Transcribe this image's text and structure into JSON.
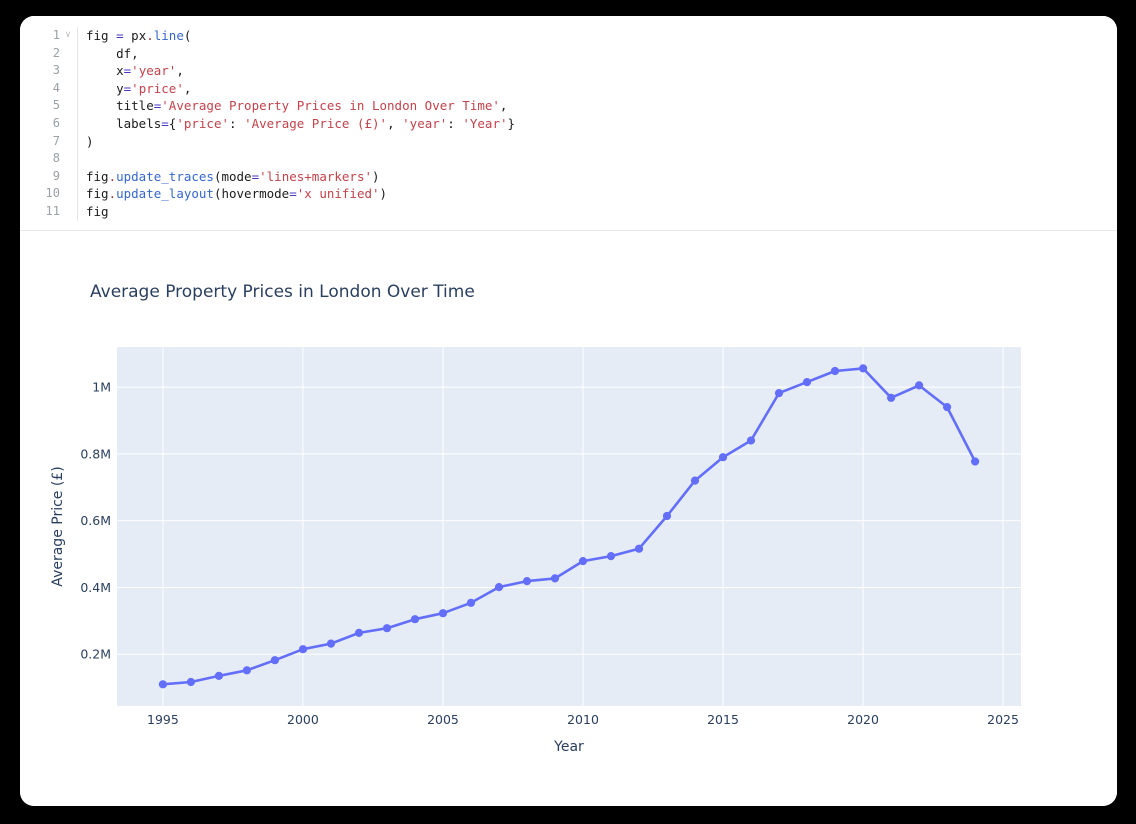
{
  "window": {
    "background_color": "#000000",
    "card_color": "#ffffff"
  },
  "code_editor": {
    "fold_icon": "∨",
    "lines": [
      {
        "num": "1",
        "fold": true,
        "tokens": [
          [
            "fig ",
            ""
          ],
          [
            "=",
            "op"
          ],
          [
            " px",
            ""
          ],
          [
            ".",
            "dot"
          ],
          [
            "line",
            "fn"
          ],
          [
            "(",
            ""
          ]
        ]
      },
      {
        "num": "2",
        "fold": false,
        "tokens": [
          [
            "    df,",
            ""
          ]
        ]
      },
      {
        "num": "3",
        "fold": false,
        "tokens": [
          [
            "    x",
            ""
          ],
          [
            "=",
            "op"
          ],
          [
            "'year'",
            "str"
          ],
          [
            ",",
            ""
          ]
        ]
      },
      {
        "num": "4",
        "fold": false,
        "tokens": [
          [
            "    y",
            ""
          ],
          [
            "=",
            "op"
          ],
          [
            "'price'",
            "str"
          ],
          [
            ",",
            ""
          ]
        ]
      },
      {
        "num": "5",
        "fold": false,
        "tokens": [
          [
            "    title",
            ""
          ],
          [
            "=",
            "op"
          ],
          [
            "'Average Property Prices in London Over Time'",
            "str"
          ],
          [
            ",",
            ""
          ]
        ]
      },
      {
        "num": "6",
        "fold": false,
        "tokens": [
          [
            "    labels",
            ""
          ],
          [
            "=",
            "op"
          ],
          [
            "{",
            ""
          ],
          [
            "'price'",
            "str"
          ],
          [
            ": ",
            ""
          ],
          [
            "'Average Price (£)'",
            "str"
          ],
          [
            ", ",
            ""
          ],
          [
            "'year'",
            "str"
          ],
          [
            ": ",
            ""
          ],
          [
            "'Year'",
            "str"
          ],
          [
            "}",
            ""
          ]
        ]
      },
      {
        "num": "7",
        "fold": false,
        "tokens": [
          [
            ")",
            ""
          ]
        ]
      },
      {
        "num": "8",
        "fold": false,
        "tokens": [
          [
            "",
            ""
          ]
        ]
      },
      {
        "num": "9",
        "fold": false,
        "tokens": [
          [
            "fig",
            ""
          ],
          [
            ".",
            "dot"
          ],
          [
            "update_traces",
            "fn"
          ],
          [
            "(mode",
            ""
          ],
          [
            "=",
            "op"
          ],
          [
            "'lines+markers'",
            "str"
          ],
          [
            ")",
            ""
          ]
        ]
      },
      {
        "num": "10",
        "fold": false,
        "tokens": [
          [
            "fig",
            ""
          ],
          [
            ".",
            "dot"
          ],
          [
            "update_layout",
            "fn"
          ],
          [
            "(hovermode",
            ""
          ],
          [
            "=",
            "op"
          ],
          [
            "'x unified'",
            "str"
          ],
          [
            ")",
            ""
          ]
        ]
      },
      {
        "num": "11",
        "fold": false,
        "tokens": [
          [
            "fig",
            ""
          ]
        ]
      }
    ]
  },
  "chart_data": {
    "type": "line",
    "title": "Average Property Prices in London Over Time",
    "xlabel": "Year",
    "ylabel": "Average Price (£)",
    "mode": "lines+markers",
    "x": [
      1995,
      1996,
      1997,
      1998,
      1999,
      2000,
      2001,
      2002,
      2003,
      2004,
      2005,
      2006,
      2007,
      2008,
      2009,
      2010,
      2011,
      2012,
      2013,
      2014,
      2015,
      2016,
      2017,
      2018,
      2019,
      2020,
      2021,
      2022,
      2023,
      2024
    ],
    "y": [
      110000,
      117000,
      135000,
      152000,
      182000,
      215000,
      232000,
      264000,
      278000,
      305000,
      323000,
      354000,
      401000,
      419000,
      427000,
      479000,
      494000,
      516000,
      614000,
      720000,
      790000,
      840000,
      982000,
      1015000,
      1048000,
      1056000,
      968000,
      1005000,
      940000,
      777000
    ],
    "xlim": [
      1993.36,
      2025.64
    ],
    "ylim": [
      45000,
      1120000
    ],
    "xticks": [
      1995,
      2000,
      2005,
      2010,
      2015,
      2020,
      2025
    ],
    "xtick_labels": [
      "1995",
      "2000",
      "2005",
      "2010",
      "2015",
      "2020",
      "2025"
    ],
    "yticks": [
      200000,
      400000,
      600000,
      800000,
      1000000
    ],
    "ytick_labels": [
      "0.2M",
      "0.4M",
      "0.6M",
      "0.8M",
      "1M"
    ],
    "grid": true,
    "legend": "none",
    "colors": {
      "line": "#636efa",
      "marker": "#636efa",
      "plot_background": "#e5ecf6",
      "grid": "#ffffff",
      "text": "#2a3f5f"
    }
  }
}
